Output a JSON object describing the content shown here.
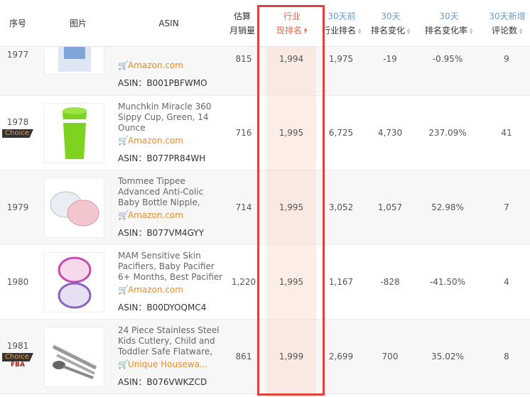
{
  "columns": {
    "index": "序号",
    "image": "图片",
    "asin": "ASIN",
    "sales_1": "估算",
    "sales_2": "月销量",
    "rank_1": "行业",
    "rank_2": "现排名",
    "prev_1": "30天前",
    "prev_2": "行业排名",
    "chg_1": "30天",
    "chg_2": "排名变化",
    "rate_1": "30天",
    "rate_2": "排名变化率",
    "rev_1": "30天新增",
    "rev_2": "评论数"
  },
  "asin_prefix": "ASIN：",
  "rows": [
    {
      "index": "1977",
      "title": "",
      "store": "Amazon.com",
      "asin": "B001PBFWMO",
      "sales": "815",
      "rank": "1,994",
      "prev": "1,975",
      "chg": "-19",
      "rate": "-0.95%",
      "reviews": "9",
      "badge": "",
      "fba": ""
    },
    {
      "index": "1978",
      "title": "Munchkin Miracle 360 Sippy Cup, Green, 14 Ounce",
      "store": "Amazon.com",
      "asin": "B077PR84WH",
      "sales": "716",
      "rank": "1,995",
      "prev": "6,725",
      "chg": "4,730",
      "rate": "237.09%",
      "reviews": "41",
      "badge": "Choice",
      "fba": ""
    },
    {
      "index": "1979",
      "title": "Tommee Tippee Advanced Anti-Colic Baby Bottle Nipple,",
      "store": "Amazon.com",
      "asin": "B077VM4GYY",
      "sales": "714",
      "rank": "1,995",
      "prev": "3,052",
      "chg": "1,057",
      "rate": "52.98%",
      "reviews": "7",
      "badge": "",
      "fba": ""
    },
    {
      "index": "1980",
      "title": "MAM Sensitive Skin Pacifiers, Baby Pacifier 6+ Months, Best Pacifier",
      "store": "Amazon.com",
      "asin": "B00DYOQMC4",
      "sales": "1,220",
      "rank": "1,995",
      "prev": "1,167",
      "chg": "-828",
      "rate": "-41.50%",
      "reviews": "4",
      "badge": "",
      "fba": ""
    },
    {
      "index": "1981",
      "title": "24 Piece Stainless Steel Kids Cutlery, Child and Toddler Safe Flatware,",
      "store": "Unique Housewa...",
      "asin": "B076VWKZCD",
      "sales": "861",
      "rank": "1,999",
      "prev": "2,699",
      "chg": "700",
      "rate": "35.02%",
      "reviews": "8",
      "badge": "Choice",
      "fba": "FBA"
    }
  ],
  "colors": {
    "accent": "#e8663d",
    "highlight_box": "#e04040",
    "store_link": "#f08a24"
  }
}
